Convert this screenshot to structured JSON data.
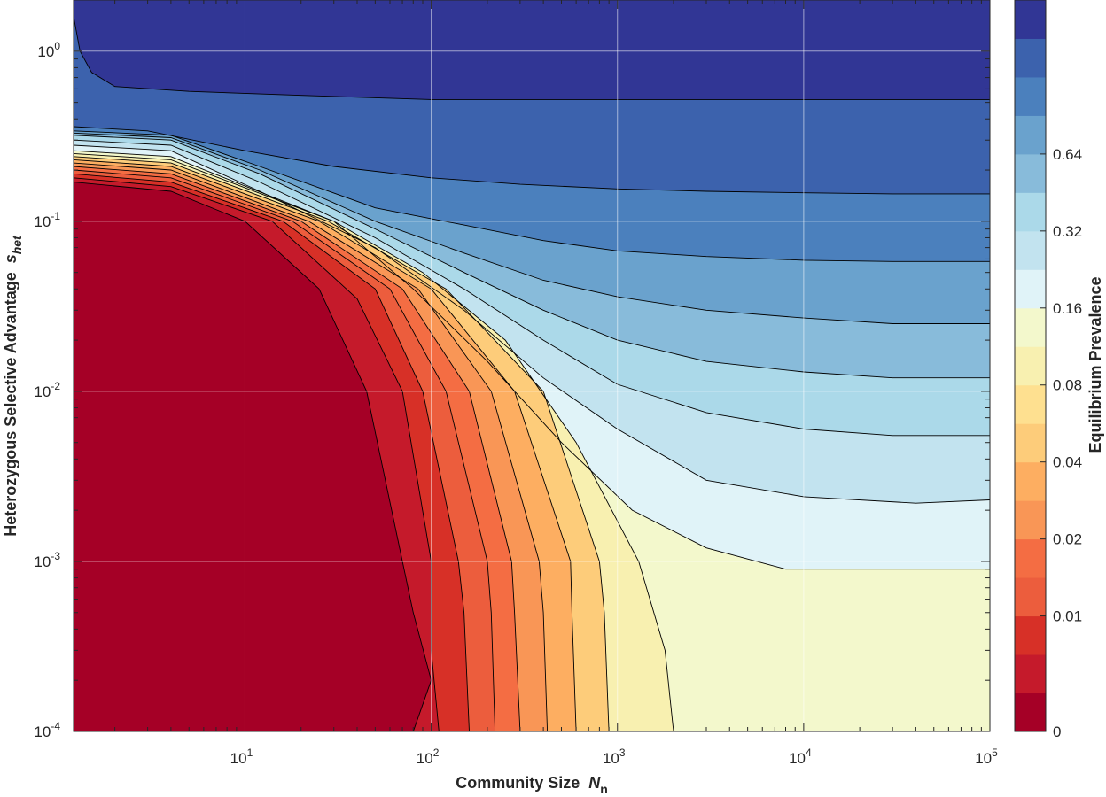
{
  "chart_data": {
    "type": "heatmap",
    "subtype": "filled-contour",
    "title": "",
    "xlabel": "Community Size",
    "xlabel_var": "N",
    "xlabel_sub": "n",
    "ylabel": "Heterozygous Selective Advantage",
    "ylabel_var": "s",
    "ylabel_sub": "het",
    "xscale": "log",
    "yscale": "log",
    "xlim": [
      1.2,
      100000
    ],
    "ylim": [
      0.0001,
      2.0
    ],
    "x_ticks": [
      {
        "value": 10,
        "base": "10",
        "exp": "1"
      },
      {
        "value": 100,
        "base": "10",
        "exp": "2"
      },
      {
        "value": 1000,
        "base": "10",
        "exp": "3"
      },
      {
        "value": 10000,
        "base": "10",
        "exp": "4"
      },
      {
        "value": 100000,
        "base": "10",
        "exp": "5"
      }
    ],
    "y_ticks": [
      {
        "value": 0.0001,
        "base": "10",
        "exp": "-4"
      },
      {
        "value": 0.001,
        "base": "10",
        "exp": "-3"
      },
      {
        "value": 0.01,
        "base": "10",
        "exp": "-2"
      },
      {
        "value": 0.1,
        "base": "10",
        "exp": "-1"
      },
      {
        "value": 1,
        "base": "10",
        "exp": "0"
      }
    ],
    "grid": true,
    "colorbar": {
      "label": "Equilibrium Prevalence",
      "position": "right",
      "ticks": [
        "0",
        "0.01",
        "0.02",
        "0.04",
        "0.08",
        "0.16",
        "0.32",
        "0.64"
      ],
      "colors": [
        "#a50026",
        "#c51a2b",
        "#d73027",
        "#ec5d3d",
        "#f46d43",
        "#f99656",
        "#fdae61",
        "#fdcc7a",
        "#fee090",
        "#f8f0b0",
        "#f3f8cc",
        "#e0f3f8",
        "#c2e3ef",
        "#abd9e9",
        "#88bbda",
        "#6aa2cd",
        "#4b80bd",
        "#3c62ad",
        "#313695"
      ]
    },
    "contour_levels": [
      {
        "start_x": 75,
        "points": [
          [
            80,
            0.0001
          ],
          [
            100,
            0.0002
          ],
          [
            80,
            0.0005
          ],
          [
            70,
            0.001
          ],
          [
            45,
            0.01
          ],
          [
            25,
            0.04
          ],
          [
            10,
            0.1
          ],
          [
            4,
            0.15
          ],
          [
            1.2,
            0.17
          ]
        ]
      },
      {
        "start_x": 110,
        "points": [
          [
            110,
            0.0001
          ],
          [
            100,
            0.0003
          ],
          [
            100,
            0.001
          ],
          [
            70,
            0.01
          ],
          [
            40,
            0.035
          ],
          [
            14,
            0.1
          ],
          [
            4,
            0.16
          ],
          [
            1.2,
            0.18
          ]
        ]
      },
      {
        "start_x": 160,
        "points": [
          [
            160,
            0.0001
          ],
          [
            150,
            0.0005
          ],
          [
            140,
            0.001
          ],
          [
            90,
            0.01
          ],
          [
            50,
            0.04
          ],
          [
            16,
            0.1
          ],
          [
            4,
            0.17
          ],
          [
            1.2,
            0.19
          ]
        ]
      },
      {
        "start_x": 220,
        "points": [
          [
            220,
            0.0001
          ],
          [
            210,
            0.0005
          ],
          [
            200,
            0.001
          ],
          [
            120,
            0.01
          ],
          [
            60,
            0.04
          ],
          [
            18,
            0.1
          ],
          [
            4,
            0.18
          ],
          [
            1.2,
            0.2
          ]
        ]
      },
      {
        "start_x": 300,
        "points": [
          [
            300,
            0.0001
          ],
          [
            280,
            0.0005
          ],
          [
            270,
            0.001
          ],
          [
            160,
            0.01
          ],
          [
            70,
            0.04
          ],
          [
            20,
            0.1
          ],
          [
            4,
            0.19
          ],
          [
            1.2,
            0.21
          ]
        ]
      },
      {
        "start_x": 420,
        "points": [
          [
            420,
            0.0001
          ],
          [
            400,
            0.0005
          ],
          [
            380,
            0.001
          ],
          [
            210,
            0.01
          ],
          [
            85,
            0.04
          ],
          [
            22,
            0.1
          ],
          [
            4,
            0.2
          ],
          [
            1.2,
            0.22
          ]
        ]
      },
      {
        "start_x": 600,
        "points": [
          [
            600,
            0.0001
          ],
          [
            570,
            0.0005
          ],
          [
            560,
            0.001
          ],
          [
            280,
            0.01
          ],
          [
            100,
            0.04
          ],
          [
            25,
            0.1
          ],
          [
            4,
            0.21
          ],
          [
            1.2,
            0.23
          ]
        ]
      },
      {
        "start_x": 900,
        "points": [
          [
            900,
            0.0001
          ],
          [
            850,
            0.0005
          ],
          [
            800,
            0.001
          ],
          [
            400,
            0.01
          ],
          [
            120,
            0.04
          ],
          [
            28,
            0.1
          ],
          [
            4,
            0.22
          ],
          [
            1.2,
            0.24
          ]
        ]
      },
      {
        "start_x": 2000,
        "points": [
          [
            2000,
            0.0001
          ],
          [
            1800,
            0.0003
          ],
          [
            1300,
            0.001
          ],
          [
            600,
            0.005
          ],
          [
            250,
            0.02
          ],
          [
            90,
            0.05
          ],
          [
            30,
            0.1
          ],
          [
            4,
            0.23
          ],
          [
            1.2,
            0.25
          ]
        ]
      },
      {
        "start_x": 100000,
        "points": [
          [
            100000,
            0.0009
          ],
          [
            40000,
            0.0009
          ],
          [
            8000,
            0.0009
          ],
          [
            3000,
            0.0012
          ],
          [
            1200,
            0.002
          ],
          [
            500,
            0.005
          ],
          [
            200,
            0.015
          ],
          [
            80,
            0.04
          ],
          [
            30,
            0.1
          ],
          [
            4,
            0.24
          ],
          [
            1.2,
            0.26
          ]
        ]
      },
      {
        "start_x": 100000,
        "points": [
          [
            100000,
            0.0023
          ],
          [
            40000,
            0.0022
          ],
          [
            10000,
            0.0024
          ],
          [
            3000,
            0.003
          ],
          [
            1000,
            0.006
          ],
          [
            400,
            0.012
          ],
          [
            150,
            0.03
          ],
          [
            50,
            0.07
          ],
          [
            12,
            0.15
          ],
          [
            4,
            0.26
          ],
          [
            1.2,
            0.28
          ]
        ]
      },
      {
        "start_x": 100000,
        "points": [
          [
            100000,
            0.0055
          ],
          [
            30000,
            0.0055
          ],
          [
            10000,
            0.006
          ],
          [
            3000,
            0.0075
          ],
          [
            1000,
            0.011
          ],
          [
            400,
            0.02
          ],
          [
            150,
            0.04
          ],
          [
            50,
            0.08
          ],
          [
            12,
            0.17
          ],
          [
            4,
            0.28
          ],
          [
            1.2,
            0.3
          ]
        ]
      },
      {
        "start_x": 100000,
        "points": [
          [
            100000,
            0.012
          ],
          [
            30000,
            0.012
          ],
          [
            10000,
            0.013
          ],
          [
            3000,
            0.015
          ],
          [
            1000,
            0.02
          ],
          [
            400,
            0.03
          ],
          [
            150,
            0.05
          ],
          [
            50,
            0.09
          ],
          [
            12,
            0.19
          ],
          [
            4,
            0.3
          ],
          [
            1.2,
            0.32
          ]
        ]
      },
      {
        "start_x": 100000,
        "points": [
          [
            100000,
            0.025
          ],
          [
            30000,
            0.025
          ],
          [
            10000,
            0.027
          ],
          [
            3000,
            0.03
          ],
          [
            1000,
            0.036
          ],
          [
            400,
            0.045
          ],
          [
            150,
            0.065
          ],
          [
            50,
            0.1
          ],
          [
            12,
            0.2
          ],
          [
            4,
            0.31
          ],
          [
            1.2,
            0.33
          ]
        ]
      },
      {
        "start_x": 100000,
        "points": [
          [
            100000,
            0.058
          ],
          [
            30000,
            0.058
          ],
          [
            10000,
            0.059
          ],
          [
            3000,
            0.062
          ],
          [
            1000,
            0.067
          ],
          [
            400,
            0.077
          ],
          [
            150,
            0.095
          ],
          [
            50,
            0.12
          ],
          [
            12,
            0.21
          ],
          [
            4,
            0.32
          ],
          [
            1.2,
            0.34
          ]
        ]
      },
      {
        "start_x": 100000,
        "points": [
          [
            100000,
            0.145
          ],
          [
            30000,
            0.145
          ],
          [
            10000,
            0.147
          ],
          [
            3000,
            0.15
          ],
          [
            1000,
            0.155
          ],
          [
            300,
            0.165
          ],
          [
            100,
            0.18
          ],
          [
            30,
            0.21
          ],
          [
            10,
            0.26
          ],
          [
            3,
            0.34
          ],
          [
            1.2,
            0.36
          ]
        ]
      },
      {
        "start_x": 100000,
        "points": [
          [
            100000,
            0.52
          ],
          [
            30000,
            0.52
          ],
          [
            10000,
            0.52
          ],
          [
            3000,
            0.52
          ],
          [
            1000,
            0.52
          ],
          [
            300,
            0.52
          ],
          [
            100,
            0.52
          ],
          [
            20,
            0.55
          ],
          [
            5,
            0.58
          ],
          [
            2,
            0.62
          ],
          [
            1.5,
            0.75
          ],
          [
            1.3,
            1.0
          ],
          [
            1.2,
            1.6
          ]
        ]
      }
    ]
  }
}
